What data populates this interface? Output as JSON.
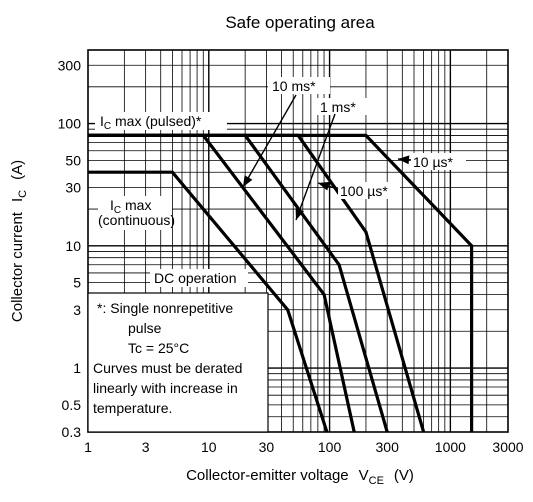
{
  "chart_data": {
    "type": "line",
    "title": "Safe operating area",
    "xlabel_main": "Collector-emitter voltage",
    "xlabel_symbol": "V",
    "xlabel_sub": "CE",
    "xlabel_unit": "(V)",
    "ylabel_main": "Collector current",
    "ylabel_symbol": "I",
    "ylabel_sub": "C",
    "ylabel_unit": "(A)",
    "x_scale": "log",
    "y_scale": "log",
    "xlim": [
      1,
      3000
    ],
    "ylim": [
      0.3,
      400
    ],
    "grid": true,
    "x_ticks": [
      {
        "value": 1,
        "label": "1"
      },
      {
        "value": 3,
        "label": "3"
      },
      {
        "value": 10,
        "label": "10"
      },
      {
        "value": 30,
        "label": "30"
      },
      {
        "value": 100,
        "label": "100"
      },
      {
        "value": 300,
        "label": "300"
      },
      {
        "value": 1000,
        "label": "1000"
      },
      {
        "value": 3000,
        "label": "3000"
      }
    ],
    "y_ticks": [
      {
        "value": 0.3,
        "label": "0.3"
      },
      {
        "value": 0.5,
        "label": "0.5"
      },
      {
        "value": 1,
        "label": "1"
      },
      {
        "value": 3,
        "label": "3"
      },
      {
        "value": 5,
        "label": "5"
      },
      {
        "value": 10,
        "label": "10"
      },
      {
        "value": 30,
        "label": "30"
      },
      {
        "value": 50,
        "label": "50"
      },
      {
        "value": 100,
        "label": "100"
      },
      {
        "value": 300,
        "label": "300"
      }
    ],
    "series": [
      {
        "name": "10 µs*",
        "x": [
          1,
          200,
          700,
          1500,
          1500
        ],
        "y": [
          80,
          80,
          22,
          10,
          0.3
        ]
      },
      {
        "name": "100 µs*",
        "x": [
          1,
          55,
          200,
          600
        ],
        "y": [
          80,
          80,
          13,
          0.3
        ]
      },
      {
        "name": "1 ms*",
        "x": [
          1,
          20,
          120,
          300
        ],
        "y": [
          80,
          80,
          7,
          0.3
        ]
      },
      {
        "name": "10 ms*",
        "x": [
          1,
          9,
          90,
          160
        ],
        "y": [
          80,
          80,
          4,
          0.3
        ]
      },
      {
        "name": "DC operation",
        "x": [
          1,
          5,
          45,
          95
        ],
        "y": [
          40,
          40,
          3,
          0.3
        ]
      }
    ],
    "annotations": {
      "ic_pulsed": {
        "main": "I",
        "sub": "C",
        "rest": " max (pulsed)*"
      },
      "ic_cont": {
        "main": "I",
        "sub": "C",
        "rest": " max",
        "line2": "(continuous)"
      },
      "label_10ms": "10 ms*",
      "label_1ms": "1 ms*",
      "label_10us": "10 µs*",
      "label_100us": "100 µs*",
      "label_dc": "DC operation"
    },
    "note": {
      "lines": [
        "*: Single nonrepetitive",
        "pulse",
        "Tc = 25°C",
        "Curves must be derated",
        "linearly with increase in",
        "temperature."
      ]
    }
  }
}
